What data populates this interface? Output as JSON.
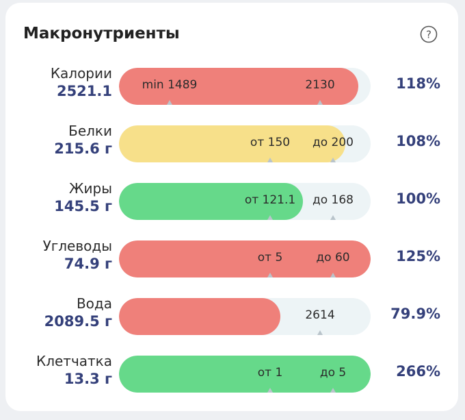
{
  "header": {
    "title": "Макронутриенты",
    "help_icon": "question-circle-icon"
  },
  "colors": {
    "red": "#ef807a",
    "yellow": "#f7e08a",
    "green": "#66d98a",
    "track": "#edf4f6",
    "value": "#34407a"
  },
  "nutrients": [
    {
      "name": "Калории",
      "value": "2521.1",
      "percent": "118%",
      "fill": 0.95,
      "color": "red",
      "marks": [
        {
          "label": "min 1489",
          "pos": 0.2
        },
        {
          "label": "2130",
          "pos": 0.8
        }
      ]
    },
    {
      "name": "Белки",
      "value": "215.6 г",
      "percent": "108%",
      "fill": 0.9,
      "color": "yellow",
      "marks": [
        {
          "label": "от 150",
          "pos": 0.6
        },
        {
          "label": "до 200",
          "pos": 0.85
        }
      ]
    },
    {
      "name": "Жиры",
      "value": "145.5 г",
      "percent": "100%",
      "fill": 0.73,
      "color": "green",
      "marks": [
        {
          "label": "от 121.1",
          "pos": 0.6
        },
        {
          "label": "до 168",
          "pos": 0.85
        }
      ]
    },
    {
      "name": "Углеводы",
      "value": "74.9 г",
      "percent": "125%",
      "fill": 1.0,
      "color": "red",
      "marks": [
        {
          "label": "от 5",
          "pos": 0.6
        },
        {
          "label": "до 60",
          "pos": 0.85
        }
      ]
    },
    {
      "name": "Вода",
      "value": "2089.5 г",
      "percent": "79.9%",
      "fill": 0.64,
      "color": "red",
      "marks": [
        {
          "label": "2614",
          "pos": 0.8
        }
      ]
    },
    {
      "name": "Клетчатка",
      "value": "13.3 г",
      "percent": "266%",
      "fill": 1.0,
      "color": "green",
      "marks": [
        {
          "label": "от 1",
          "pos": 0.6
        },
        {
          "label": "до 5",
          "pos": 0.85
        }
      ]
    }
  ]
}
